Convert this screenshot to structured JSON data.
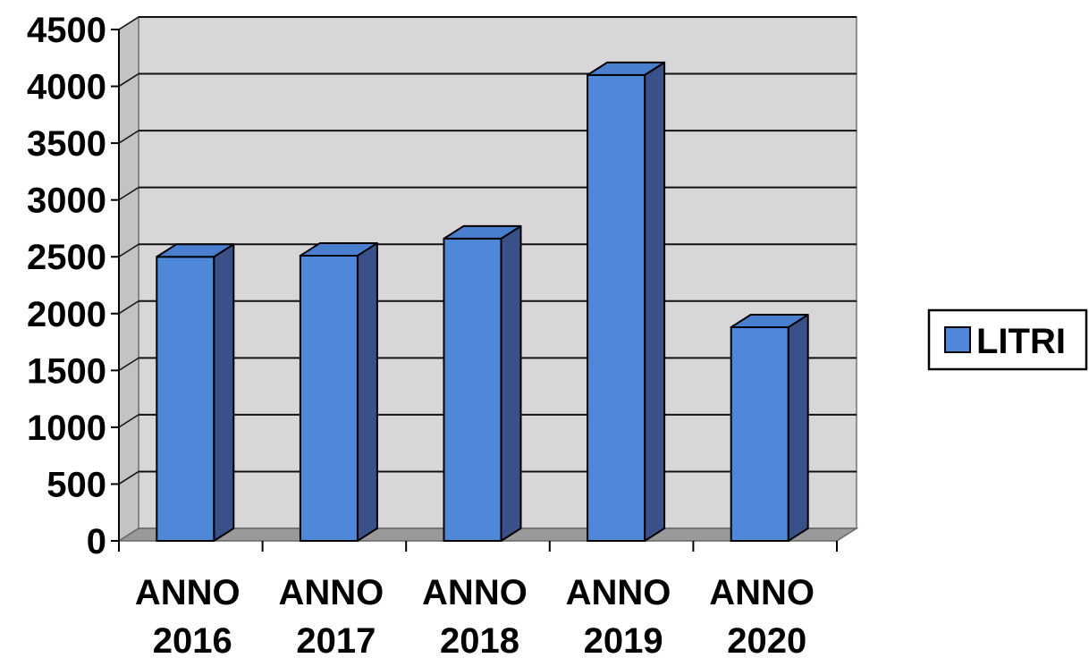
{
  "chart_data": {
    "type": "bar",
    "categories": [
      {
        "line1": "ANNO",
        "line2": "2016"
      },
      {
        "line1": "ANNO",
        "line2": "2017"
      },
      {
        "line1": "ANNO",
        "line2": "2018"
      },
      {
        "line1": "ANNO",
        "line2": "2019"
      },
      {
        "line1": "ANNO",
        "line2": "2020"
      }
    ],
    "series": [
      {
        "name": "LITRI",
        "values": [
          2500,
          2510,
          2660,
          4100,
          1880
        ]
      }
    ],
    "ylim": [
      0,
      4500
    ],
    "yticks": [
      "0",
      "500",
      "1000",
      "1500",
      "2000",
      "2500",
      "3000",
      "3500",
      "4000",
      "4500"
    ],
    "grid": true,
    "legend": {
      "label": "LITRI",
      "placement": "right"
    },
    "colors": {
      "bar_front": "#4f87d9",
      "bar_side": "#3a5088",
      "bar_top": "#4a7fd0",
      "wall": "#d8d6d8",
      "floor": "#9a9a9a"
    }
  }
}
